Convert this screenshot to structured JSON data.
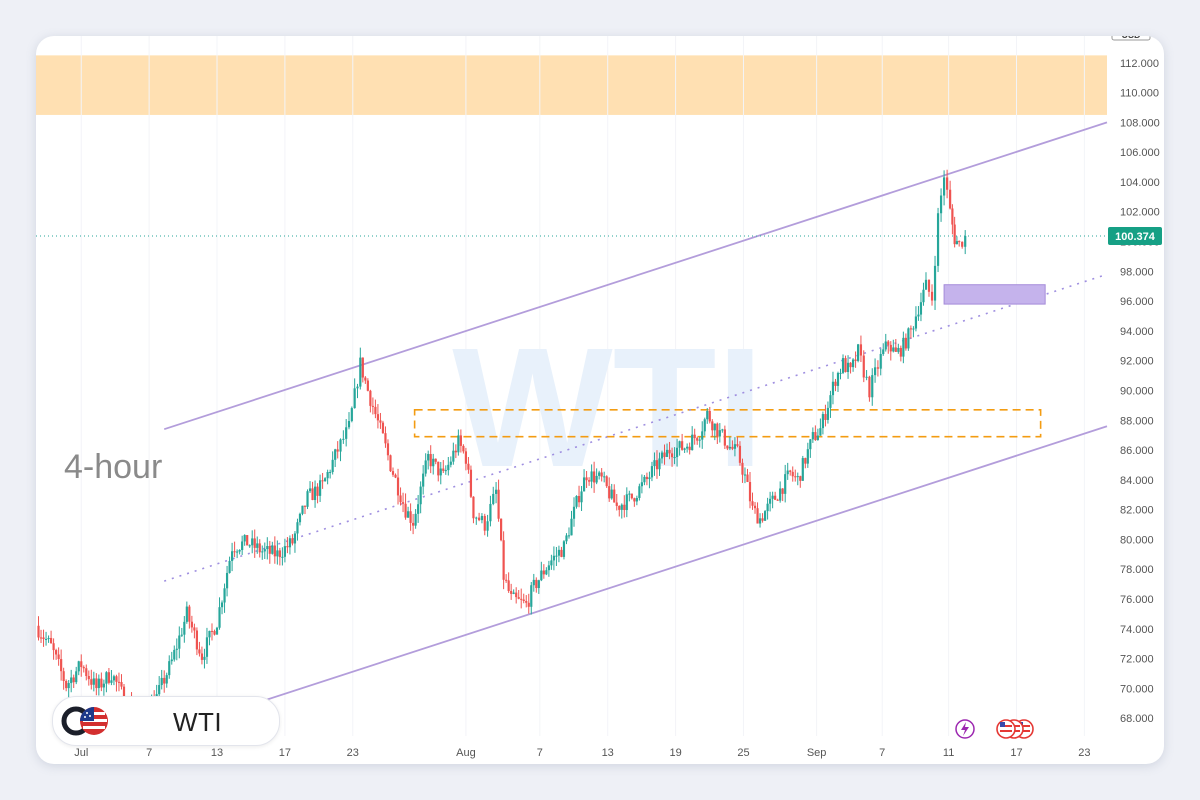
{
  "timeframe_label": "4-hour",
  "watermark": "WTI",
  "symbol": "WTI",
  "price_tag": "100.374",
  "top_right_tag": "USD",
  "colors": {
    "up": "#26a69a",
    "down": "#ef5350",
    "channel": "#b39ddb",
    "midline": "#9f8fe0",
    "resistance_zone": "#ffe0b2",
    "demand_box": "#c5b3ec",
    "orange_box": "#f39c12",
    "price_tag_bg": "#16a085",
    "price_line": "#26a69a",
    "watermark": "#e8f1fb"
  },
  "icons": [
    "flag-logo-icon",
    "lightning-icon",
    "us-flag-icon"
  ],
  "chart_data": {
    "type": "candlestick",
    "y_axis": {
      "ticks": [
        "68.000",
        "70.000",
        "72.000",
        "74.000",
        "76.000",
        "78.000",
        "80.000",
        "82.000",
        "84.000",
        "86.000",
        "88.000",
        "90.000",
        "92.000",
        "94.000",
        "96.000",
        "98.000",
        "100.000",
        "102.000",
        "104.000",
        "106.000",
        "108.000",
        "110.000",
        "112.000"
      ],
      "range": [
        66.8,
        113.8
      ]
    },
    "x_axis": {
      "ticks": [
        {
          "label": "Jul",
          "t": 6.0
        },
        {
          "label": "7",
          "t": 15.0
        },
        {
          "label": "13",
          "t": 24.0
        },
        {
          "label": "17",
          "t": 33.0
        },
        {
          "label": "23",
          "t": 42.0
        },
        {
          "label": "Aug",
          "t": 57.0
        },
        {
          "label": "7",
          "t": 66.8
        },
        {
          "label": "13",
          "t": 75.8
        },
        {
          "label": "19",
          "t": 84.8
        },
        {
          "label": "25",
          "t": 93.8
        },
        {
          "label": "Sep",
          "t": 103.5
        },
        {
          "label": "7",
          "t": 112.2
        },
        {
          "label": "11",
          "t": 121.0
        },
        {
          "label": "17",
          "t": 130.0
        },
        {
          "label": "23",
          "t": 139.0
        }
      ],
      "range": [
        0,
        142
      ]
    },
    "last_price": 100.374,
    "anchors": [
      [
        0,
        74.2
      ],
      [
        2,
        72.8
      ],
      [
        4,
        70.2
      ],
      [
        6,
        71.6
      ],
      [
        8,
        70.0
      ],
      [
        10,
        71.0
      ],
      [
        12,
        69.0
      ],
      [
        14,
        68.2
      ],
      [
        16,
        69.4
      ],
      [
        18,
        71.8
      ],
      [
        20,
        75.0
      ],
      [
        22,
        72.2
      ],
      [
        24,
        74.5
      ],
      [
        26,
        79.5
      ],
      [
        28,
        79.8
      ],
      [
        30,
        79.2
      ],
      [
        32,
        79.0
      ],
      [
        34,
        79.8
      ],
      [
        36,
        82.8
      ],
      [
        38,
        83.6
      ],
      [
        40,
        86.0
      ],
      [
        41.5,
        87.5
      ],
      [
        43,
        91.8
      ],
      [
        44,
        90.0
      ],
      [
        46,
        86.8
      ],
      [
        47,
        85.0
      ],
      [
        49,
        82.0
      ],
      [
        50,
        81.2
      ],
      [
        52,
        85.5
      ],
      [
        54,
        84.2
      ],
      [
        56,
        86.5
      ],
      [
        57,
        85.5
      ],
      [
        58,
        81.8
      ],
      [
        59.5,
        81.0
      ],
      [
        61,
        83.2
      ],
      [
        62,
        77.5
      ],
      [
        63,
        76.0
      ],
      [
        65,
        75.6
      ],
      [
        66,
        76.8
      ],
      [
        68,
        78.4
      ],
      [
        70,
        79.5
      ],
      [
        72,
        83.0
      ],
      [
        73,
        84.4
      ],
      [
        75,
        84.0
      ],
      [
        77,
        82.2
      ],
      [
        79,
        82.8
      ],
      [
        81,
        84.0
      ],
      [
        82,
        84.8
      ],
      [
        84,
        86.0
      ],
      [
        86,
        86.2
      ],
      [
        88,
        87.2
      ],
      [
        89,
        88.4
      ],
      [
        90,
        87.6
      ],
      [
        92,
        86.2
      ],
      [
        93,
        85.8
      ],
      [
        94,
        84.2
      ],
      [
        95,
        82.0
      ],
      [
        96,
        81.4
      ],
      [
        98,
        82.8
      ],
      [
        100,
        84.4
      ],
      [
        101,
        84.0
      ],
      [
        103,
        86.8
      ],
      [
        104,
        87.4
      ],
      [
        106,
        90.8
      ],
      [
        107,
        91.8
      ],
      [
        108,
        91.2
      ],
      [
        109,
        92.6
      ],
      [
        110.5,
        90.0
      ],
      [
        112,
        92.2
      ],
      [
        113,
        93.2
      ],
      [
        114,
        92.4
      ],
      [
        115,
        93.0
      ],
      [
        116,
        94.0
      ],
      [
        117,
        95.6
      ],
      [
        118,
        97.0
      ],
      [
        118.8,
        96.2
      ],
      [
        119.6,
        101.6
      ],
      [
        120.4,
        104.5
      ],
      [
        121.2,
        102.0
      ],
      [
        121.8,
        100.2
      ],
      [
        122.4,
        99.8
      ],
      [
        123.2,
        100.374
      ]
    ],
    "channel_upper": [
      {
        "t": 17,
        "y": 87.4
      },
      {
        "t": 142,
        "y": 108.0
      }
    ],
    "channel_lower": [
      {
        "t": 17,
        "y": 67.0
      },
      {
        "t": 142,
        "y": 87.6
      }
    ],
    "channel_mid": [
      {
        "t": 17,
        "y": 77.2
      },
      {
        "t": 142,
        "y": 97.8
      }
    ],
    "resistance_zone": {
      "y_from": 108.5,
      "y_to": 112.5
    },
    "orange_box": {
      "t_from": 50.2,
      "t_to": 133.2,
      "y_from": 86.9,
      "y_to": 88.7
    },
    "demand_box": {
      "t_from": 120.4,
      "t_to": 133.8,
      "y_from": 95.8,
      "y_to": 97.1
    }
  }
}
